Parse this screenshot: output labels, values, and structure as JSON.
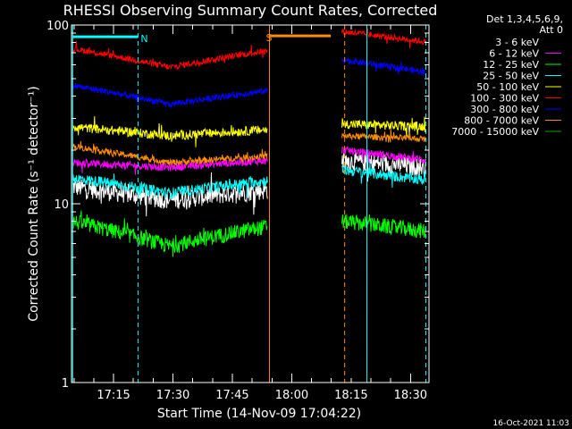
{
  "chart_data": {
    "type": "line",
    "title": "RHESSI Observing Summary Count Rates, Corrected",
    "xlabel": "Start Time (14-Nov-09 17:04:22)",
    "ylabel": "Corrected Count Rate (s⁻¹ detector⁻¹)",
    "yscale": "log",
    "ylim": [
      1,
      100
    ],
    "xlim_minutes": [
      0,
      90.3
    ],
    "yticks": [
      {
        "value": 1,
        "label": "1"
      },
      {
        "value": 10,
        "label": "10"
      },
      {
        "value": 100,
        "label": "100"
      }
    ],
    "xticks": [
      {
        "minute": 10.63,
        "label": "17:15"
      },
      {
        "minute": 25.63,
        "label": "17:30"
      },
      {
        "minute": 40.63,
        "label": "17:45"
      },
      {
        "minute": 55.63,
        "label": "18:00"
      },
      {
        "minute": 70.63,
        "label": "18:15"
      },
      {
        "minute": 85.63,
        "label": "18:30"
      }
    ],
    "legend": {
      "position": "top-right",
      "header": [
        "Det 1,3,4,5,6,9,",
        "Att 0"
      ]
    },
    "data_gap_minutes": [
      49.6,
      68.3
    ],
    "markers": [
      {
        "label": "N",
        "minute": 16.8,
        "color": "#00ffff",
        "bar_start": 0.3,
        "bar_end": 16.8,
        "value": 86
      },
      {
        "label": "S",
        "minute": 50.0,
        "color": "#ff8c00",
        "bar_start": 49.8,
        "bar_end": 65.5,
        "value": 87
      }
    ],
    "vertical_lines": [
      {
        "minute": 0.3,
        "color": "#00ffff",
        "style": "solid"
      },
      {
        "minute": 16.8,
        "color": "#00ffff",
        "style": "dashed"
      },
      {
        "minute": 50.0,
        "color": "#ff8c00",
        "style": "solid"
      },
      {
        "minute": 69.0,
        "color": "#ff8c00",
        "style": "dashed"
      },
      {
        "minute": 74.6,
        "color": "#00ffff",
        "style": "solid"
      },
      {
        "minute": 89.5,
        "color": "#00ffff",
        "style": "dashed"
      }
    ],
    "series": [
      {
        "name": "3 - 6 keV",
        "color": "#ffffff",
        "legend_swatch": "#000000",
        "start": 12.5,
        "mid": 10.5,
        "end_pre": 12.0,
        "post": 17.5,
        "end_post": 16.0,
        "noise": 0.12
      },
      {
        "name": "6 - 12 keV",
        "color": "#ff00ff",
        "start": 17.0,
        "mid": 16.0,
        "end_pre": 17.5,
        "post": 20.0,
        "end_post": 17.5,
        "noise": 0.05
      },
      {
        "name": "12 - 25 keV",
        "color": "#00ff00",
        "start": 8.0,
        "mid": 5.8,
        "end_pre": 7.5,
        "post": 8.0,
        "end_post": 7.0,
        "noise": 0.1
      },
      {
        "name": "25 - 50 keV",
        "color": "#00ffff",
        "start": 14.0,
        "mid": 11.5,
        "end_pre": 13.5,
        "post": 15.5,
        "end_post": 13.5,
        "noise": 0.07
      },
      {
        "name": "50 - 100 keV",
        "color": "#ffff00",
        "start": 27.0,
        "mid": 24.0,
        "end_pre": 26.0,
        "post": 28.0,
        "end_post": 27.0,
        "noise": 0.06
      },
      {
        "name": "100 - 300 keV",
        "color": "#ff0000",
        "start": 74.0,
        "mid": 58.0,
        "end_pre": 72.0,
        "post": 92.0,
        "end_post": 80.0,
        "noise": 0.04
      },
      {
        "name": "300 - 800 keV",
        "color": "#0000ff",
        "start": 46.0,
        "mid": 36.0,
        "end_pre": 43.0,
        "post": 64.0,
        "end_post": 54.0,
        "noise": 0.04
      },
      {
        "name": "800 - 7000 keV",
        "color": "#ff8c00",
        "start": 21.0,
        "mid": 17.0,
        "end_pre": 18.5,
        "post": 24.0,
        "end_post": 23.0,
        "noise": 0.04
      },
      {
        "name": "7000 - 15000 keV",
        "color": "#00aa00",
        "hidden": true
      }
    ]
  },
  "footer": {
    "timestamp": "16-Oct-2021 11:03"
  }
}
